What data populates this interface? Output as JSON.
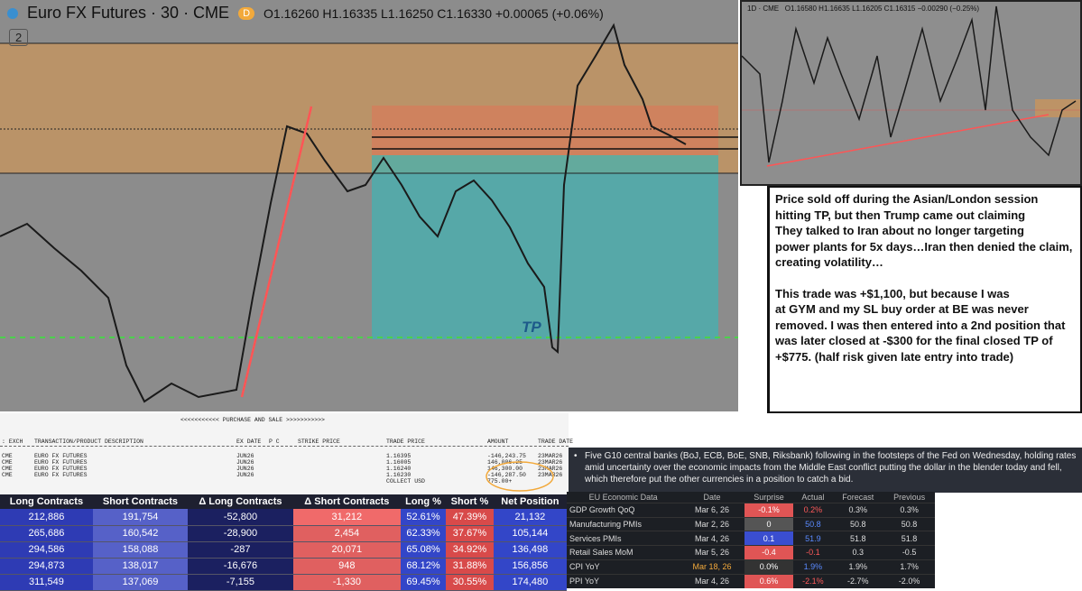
{
  "header": {
    "title": "Euro FX Futures · 30 · CME",
    "badge": "D",
    "ohlc": "O1.16260 H1.16335 L1.16250 C1.16330 +0.00065 (+0.06%)",
    "dropdown": "2"
  },
  "chart_label": "TP",
  "inset": {
    "title": "1D · CME",
    "ohlc": "O1.16580 H1.16635 L1.16205 C1.16315 −0.00290 (−0.25%)"
  },
  "note": {
    "paragraphs": [
      [
        "Price sold off during the Asian/London session",
        "hitting TP, but then Trump came out claiming",
        "They talked to Iran about no longer targeting",
        "power plants for 5x days…Iran then denied the claim,",
        "creating volatility…"
      ],
      [
        "This trade was +$1,100, but because I was",
        "at GYM and my SL buy order at BE was never",
        "removed. I was then entered into a 2nd position that",
        "was later closed at -$300 for the final closed TP of",
        "+$775. (half risk given late entry into trade)"
      ]
    ]
  },
  "statement": {
    "title": "<<<<<<<<<<< PURCHASE AND SALE >>>>>>>>>>>",
    "headers": [
      ": EXCH",
      "TRANSACTION/PRODUCT DESCRIPTION",
      "EX DATE",
      "P C",
      "STRIKE PRICE",
      "TRADE PRICE",
      "AMOUNT",
      "TRADE DATE"
    ],
    "rows": [
      [
        "CME",
        "EURO FX FUTURES",
        "JUN26",
        "",
        "",
        "1.16395",
        "-146,243.75",
        "23MAR26"
      ],
      [
        "CME",
        "EURO FX FUTURES",
        "JUN26",
        "",
        "",
        "1.16005",
        "146,006.25",
        "23MAR26"
      ],
      [
        "CME",
        "EURO FX FUTURES",
        "JUN26",
        "",
        "",
        "1.16240",
        "146,300.00",
        "23MAR26"
      ],
      [
        "CME",
        "EURO FX FUTURES",
        "JUN26",
        "",
        "",
        "1.16230",
        "-146,287.50",
        "23MAR26"
      ]
    ],
    "collect": {
      "label": "COLLECT USD",
      "amount": "775.00+"
    }
  },
  "bullet": "Five G10 central banks (BoJ, ECB, BoE, SNB, Riksbank) following in the footsteps of the Fed on Wednesday, holding rates amid uncertainty over the economic impacts from the Middle East conflict putting the dollar in the blender today and fell, which therefore put the other currencies in a position to catch a bid.",
  "cot": {
    "headers": [
      "Long Contracts",
      "Short Contracts",
      "Δ Long Contracts",
      "Δ Short Contracts",
      "Long %",
      "Short %",
      "Net Position"
    ],
    "rows": [
      [
        "212,886",
        "191,754",
        "-52,800",
        "31,212",
        "52.61%",
        "47.39%",
        "21,132"
      ],
      [
        "265,686",
        "160,542",
        "-28,900",
        "2,454",
        "62.33%",
        "37.67%",
        "105,144"
      ],
      [
        "294,586",
        "158,088",
        "-287",
        "20,071",
        "65.08%",
        "34.92%",
        "136,498"
      ],
      [
        "294,873",
        "138,017",
        "-16,676",
        "948",
        "68.12%",
        "31.88%",
        "156,856"
      ],
      [
        "311,549",
        "137,069",
        "-7,155",
        "-1,330",
        "69.45%",
        "30.55%",
        "174,480"
      ]
    ]
  },
  "econ": {
    "headers": [
      "EU Economic Data",
      "Date",
      "Surprise",
      "Actual",
      "Forecast",
      "Previous"
    ],
    "rows": [
      [
        "GDP Growth QoQ",
        "Mar 6, 26",
        "-0.1%",
        "0.2%",
        "0.3%",
        "0.3%"
      ],
      [
        "Manufacturing PMIs",
        "Mar 2, 26",
        "0",
        "50.8",
        "50.8",
        "50.8"
      ],
      [
        "Services PMIs",
        "Mar 4, 26",
        "0.1",
        "51.9",
        "51.8",
        "51.8"
      ],
      [
        "Retail Sales MoM",
        "Mar 5, 26",
        "-0.4",
        "-0.1",
        "0.3",
        "-0.5"
      ],
      [
        "CPI YoY",
        "Mar 18, 26",
        "0.0%",
        "1.9%",
        "1.9%",
        "1.7%"
      ],
      [
        "PPI YoY",
        "Mar 4, 26",
        "0.6%",
        "-2.1%",
        "-2.7%",
        "-2.0%"
      ]
    ]
  }
}
